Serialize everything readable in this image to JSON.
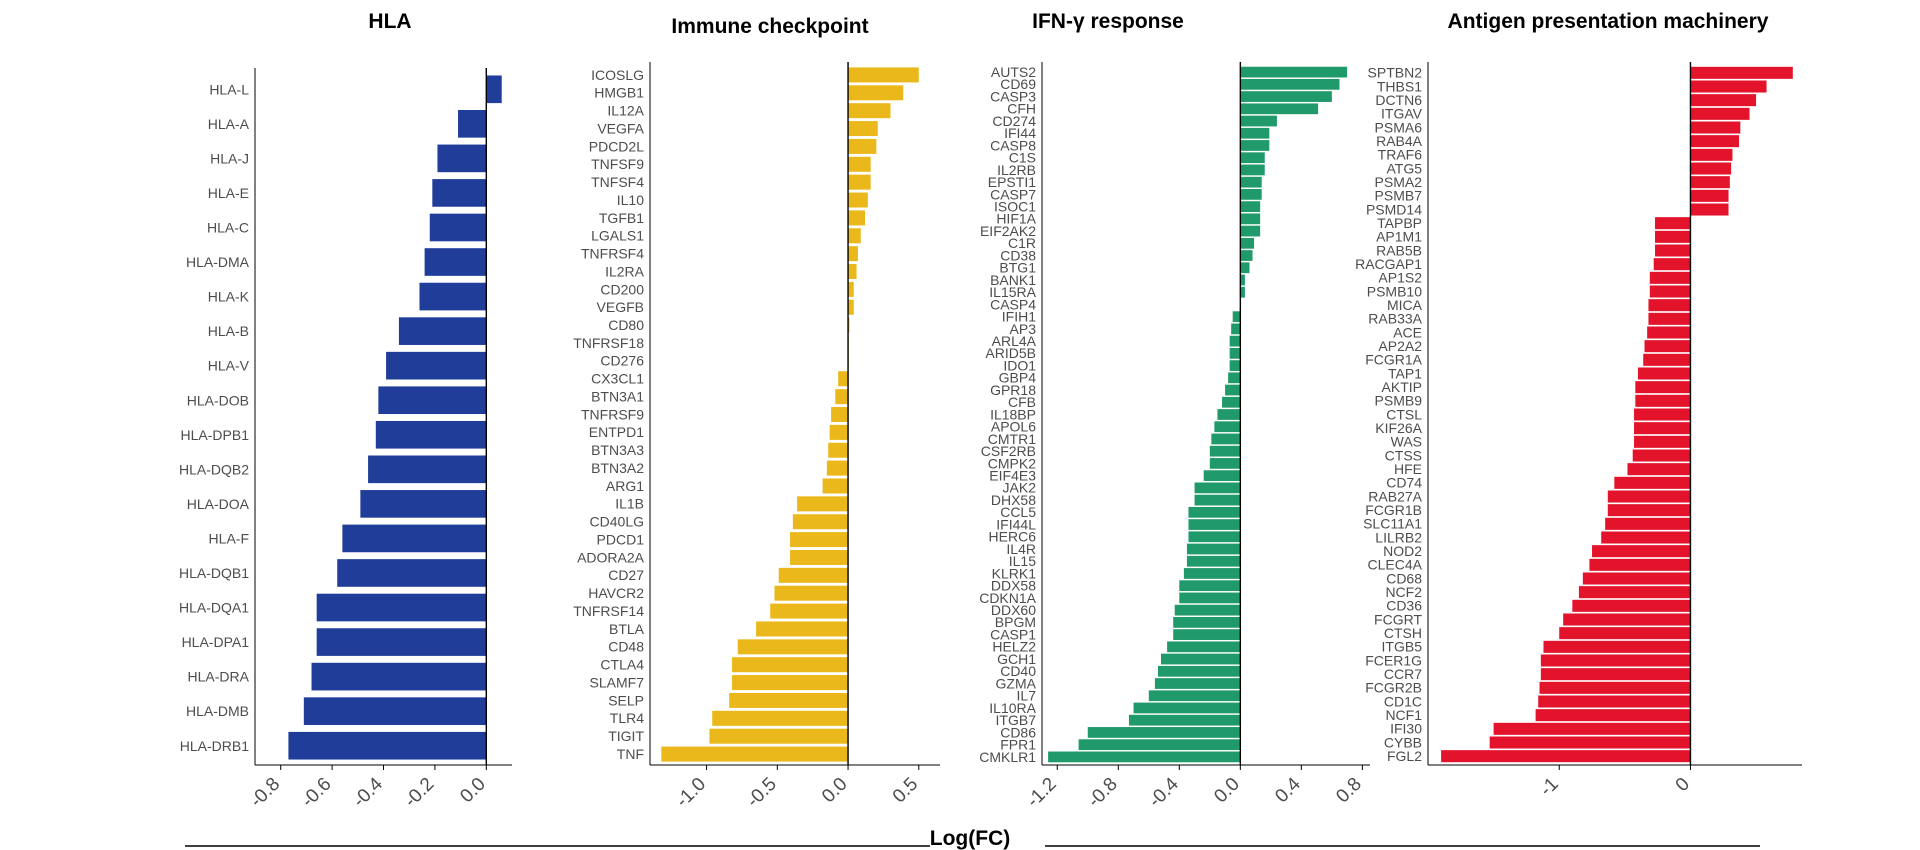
{
  "figure": {
    "xlabel": "Log(FC)"
  },
  "chart_data": [
    {
      "type": "bar",
      "orientation": "horizontal",
      "title": "HLA",
      "color": "#1f3d99",
      "xlim": [
        -0.9,
        0.1
      ],
      "xticks": [
        -0.8,
        -0.6,
        -0.4,
        -0.2,
        0.0
      ],
      "xtick_labels": [
        "-0.8",
        "-0.6",
        "-0.4",
        "-0.2",
        "0.0"
      ],
      "categories": [
        "HLA-L",
        "HLA-A",
        "HLA-J",
        "HLA-E",
        "HLA-C",
        "HLA-DMA",
        "HLA-K",
        "HLA-B",
        "HLA-V",
        "HLA-DOB",
        "HLA-DPB1",
        "HLA-DQB2",
        "HLA-DOA",
        "HLA-F",
        "HLA-DQB1",
        "HLA-DQA1",
        "HLA-DPA1",
        "HLA-DRA",
        "HLA-DMB",
        "HLA-DRB1"
      ],
      "values": [
        0.06,
        -0.11,
        -0.19,
        -0.21,
        -0.22,
        -0.24,
        -0.26,
        -0.34,
        -0.39,
        -0.42,
        -0.43,
        -0.46,
        -0.49,
        -0.56,
        -0.58,
        -0.66,
        -0.66,
        -0.68,
        -0.71,
        -0.77
      ]
    },
    {
      "type": "bar",
      "orientation": "horizontal",
      "title": "Immune checkpoint",
      "color": "#eab81a",
      "xlim": [
        -1.4,
        0.65
      ],
      "xticks": [
        -1.0,
        -0.5,
        0.0,
        0.5
      ],
      "xtick_labels": [
        "-1.0",
        "-0.5",
        "0.0",
        "0.5"
      ],
      "categories": [
        "ICOSLG",
        "HMGB1",
        "IL12A",
        "VEGFA",
        "PDCD2L",
        "TNFSF9",
        "TNFSF4",
        "IL10",
        "TGFB1",
        "LGALS1",
        "TNFRSF4",
        "IL2RA",
        "CD200",
        "VEGFB",
        "CD80",
        "TNFRSF18",
        "CD276",
        "CX3CL1",
        "BTN3A1",
        "TNFRSF9",
        "ENTPD1",
        "BTN3A3",
        "BTN3A2",
        "ARG1",
        "IL1B",
        "CD40LG",
        "PDCD1",
        "ADORA2A",
        "CD27",
        "HAVCR2",
        "TNFRSF14",
        "BTLA",
        "CD48",
        "CTLA4",
        "SLAMF7",
        "SELP",
        "TLR4",
        "TIGIT",
        "TNF"
      ],
      "values": [
        0.5,
        0.39,
        0.3,
        0.21,
        0.2,
        0.16,
        0.16,
        0.14,
        0.12,
        0.09,
        0.07,
        0.06,
        0.04,
        0.04,
        0.01,
        0.0,
        0.0,
        -0.07,
        -0.09,
        -0.12,
        -0.13,
        -0.14,
        -0.15,
        -0.18,
        -0.36,
        -0.39,
        -0.41,
        -0.41,
        -0.49,
        -0.52,
        -0.55,
        -0.65,
        -0.78,
        -0.82,
        -0.82,
        -0.84,
        -0.96,
        -0.98,
        -1.32
      ]
    },
    {
      "type": "bar",
      "orientation": "horizontal",
      "title": "IFN-γ response",
      "color": "#219a6b",
      "xlim": [
        -1.3,
        0.85
      ],
      "xticks": [
        -1.2,
        -0.8,
        -0.4,
        0.0,
        0.4,
        0.8
      ],
      "xtick_labels": [
        "-1.2",
        "-0.8",
        "-0.4",
        "0.0",
        "0.4",
        "0.8"
      ],
      "categories": [
        "AUTS2",
        "CD69",
        "CASP3",
        "CFH",
        "CD274",
        "IFI44",
        "CASP8",
        "C1S",
        "IL2RB",
        "EPSTI1",
        "CASP7",
        "ISOC1",
        "HIF1A",
        "EIF2AK2",
        "C1R",
        "CD38",
        "BTG1",
        "BANK1",
        "IL15RA",
        "CASP4",
        "IFIH1",
        "AP3",
        "ARL4A",
        "ARID5B",
        "IDO1",
        "GBP4",
        "GPR18",
        "CFB",
        "IL18BP",
        "APOL6",
        "CMTR1",
        "CSF2RB",
        "CMPK2",
        "EIF4E3",
        "JAK2",
        "DHX58",
        "CCL5",
        "IFI44L",
        "HERC6",
        "IL4R",
        "IL15",
        "KLRK1",
        "DDX58",
        "CDKN1A",
        "DDX60",
        "BPGM",
        "CASP1",
        "HELZ2",
        "GCH1",
        "CD40",
        "GZMA",
        "IL7",
        "IL10RA",
        "ITGB7",
        "CD86",
        "FPR1",
        "CMKLR1"
      ],
      "values": [
        0.7,
        0.65,
        0.6,
        0.51,
        0.24,
        0.19,
        0.19,
        0.16,
        0.16,
        0.14,
        0.14,
        0.13,
        0.13,
        0.13,
        0.09,
        0.08,
        0.06,
        0.03,
        0.03,
        0.0,
        -0.05,
        -0.06,
        -0.07,
        -0.07,
        -0.07,
        -0.08,
        -0.1,
        -0.12,
        -0.15,
        -0.17,
        -0.19,
        -0.2,
        -0.2,
        -0.24,
        -0.3,
        -0.3,
        -0.34,
        -0.34,
        -0.34,
        -0.35,
        -0.35,
        -0.37,
        -0.4,
        -0.4,
        -0.43,
        -0.44,
        -0.44,
        -0.48,
        -0.52,
        -0.54,
        -0.56,
        -0.6,
        -0.7,
        -0.73,
        -1.0,
        -1.06,
        -1.26
      ]
    },
    {
      "type": "bar",
      "orientation": "horizontal",
      "title": "Antigen presentation machinery",
      "color": "#e3132c",
      "xlim": [
        -2.0,
        0.85
      ],
      "xticks": [
        -1,
        0
      ],
      "xtick_labels": [
        "-1",
        "0"
      ],
      "categories": [
        "SPTBN2",
        "THBS1",
        "DCTN6",
        "ITGAV",
        "PSMA6",
        "RAB4A",
        "TRAF6",
        "ATG5",
        "PSMA2",
        "PSMB7",
        "PSMD14",
        "TAPBP",
        "AP1M1",
        "RAB5B",
        "RACGAP1",
        "AP1S2",
        "PSMB10",
        "MICA",
        "RAB33A",
        "ACE",
        "AP2A2",
        "FCGR1A",
        "TAP1",
        "AKTIP",
        "PSMB9",
        "CTSL",
        "KIF26A",
        "WAS",
        "CTSS",
        "HFE",
        "CD74",
        "RAB27A",
        "FCGR1B",
        "SLC11A1",
        "LILRB2",
        "NOD2",
        "CLEC4A",
        "CD68",
        "NCF2",
        "CD36",
        "FCGRT",
        "CTSH",
        "ITGB5",
        "FCER1G",
        "CCR7",
        "FCGR2B",
        "CD1C",
        "NCF1",
        "IFI30",
        "CYBB",
        "FGL2"
      ],
      "values": [
        0.78,
        0.58,
        0.5,
        0.45,
        0.38,
        0.37,
        0.32,
        0.31,
        0.3,
        0.29,
        0.29,
        -0.27,
        -0.27,
        -0.27,
        -0.28,
        -0.31,
        -0.31,
        -0.32,
        -0.32,
        -0.33,
        -0.35,
        -0.36,
        -0.4,
        -0.42,
        -0.42,
        -0.43,
        -0.43,
        -0.43,
        -0.44,
        -0.48,
        -0.58,
        -0.63,
        -0.63,
        -0.65,
        -0.68,
        -0.75,
        -0.77,
        -0.82,
        -0.85,
        -0.9,
        -0.97,
        -1.0,
        -1.12,
        -1.14,
        -1.14,
        -1.15,
        -1.16,
        -1.18,
        -1.5,
        -1.53,
        -1.9
      ]
    }
  ]
}
